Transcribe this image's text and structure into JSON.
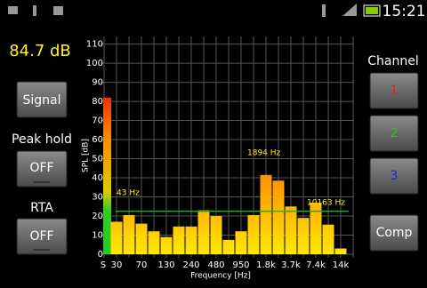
{
  "status_bar": {
    "time": "15:21"
  },
  "level_display": "84.7 dB",
  "left_controls": {
    "signal": "Signal",
    "peak_hold_label": "Peak hold",
    "peak_hold_state": "OFF",
    "rta_label": "RTA",
    "rta_state": "OFF"
  },
  "right_controls": {
    "label": "Channel",
    "buttons": [
      "1",
      "2",
      "3",
      "Comp"
    ]
  },
  "chart_data": {
    "type": "bar",
    "x_label": "Frequency [Hz]",
    "y_label": "SPL [dB]",
    "level_label": "S",
    "level_value": 82,
    "categories": [
      "30",
      null,
      "70",
      null,
      "130",
      null,
      "240",
      null,
      "480",
      null,
      "950",
      null,
      "1.8k",
      null,
      "3.7k",
      null,
      "7.4k",
      null,
      "14k"
    ],
    "values": [
      17,
      20.5,
      16,
      12,
      9,
      14.5,
      14.5,
      23,
      20,
      7.5,
      12,
      20.5,
      41.5,
      38.5,
      25,
      19,
      27,
      15.5,
      3
    ],
    "ylim": [
      0,
      114
    ],
    "yticks": [
      0,
      10,
      20,
      30,
      40,
      50,
      60,
      70,
      80,
      90,
      100,
      110
    ],
    "grid": true,
    "reference_line": 22.5,
    "reference_color": "#22aa22",
    "color_low": "#ffe800",
    "color_high": "#ff8a00",
    "annotations": [
      "43 Hz",
      "1894 Hz",
      "10163 Hz"
    ]
  }
}
